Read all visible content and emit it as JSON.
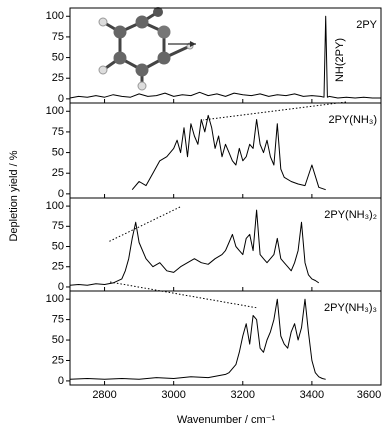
{
  "chart_data": [
    {
      "type": "line",
      "label": "2PY",
      "annotation": "NH(2PY)",
      "y_label": "Depletion yield / %",
      "color": "#000000",
      "ylim": [
        -5,
        110
      ],
      "yticks": [
        0,
        25,
        50,
        75,
        100
      ],
      "xlim": [
        2700,
        3600
      ],
      "x": [
        2700,
        2725,
        2750,
        2775,
        2800,
        2825,
        2850,
        2875,
        2900,
        2925,
        2950,
        2975,
        3000,
        3025,
        3050,
        3075,
        3100,
        3125,
        3150,
        3175,
        3200,
        3225,
        3250,
        3275,
        3300,
        3325,
        3350,
        3375,
        3400,
        3425,
        3435,
        3440,
        3445,
        3450,
        3475,
        3500,
        3525,
        3550,
        3575,
        3600
      ],
      "values": [
        1,
        3,
        2,
        4,
        2,
        5,
        3,
        2,
        6,
        3,
        4,
        7,
        3,
        5,
        4,
        8,
        4,
        6,
        3,
        7,
        5,
        4,
        6,
        3,
        5,
        4,
        6,
        3,
        4,
        3,
        2,
        100,
        2,
        3,
        1,
        2,
        1,
        2,
        1,
        1
      ]
    },
    {
      "type": "line",
      "label": "2PY(NH₃)",
      "color": "#000000",
      "ylim": [
        -5,
        110
      ],
      "yticks": [
        0,
        25,
        50,
        75,
        100
      ],
      "xlim": [
        2700,
        3600
      ],
      "x": [
        2880,
        2900,
        2920,
        2940,
        2960,
        2980,
        3000,
        3010,
        3020,
        3030,
        3040,
        3050,
        3060,
        3070,
        3080,
        3090,
        3100,
        3110,
        3120,
        3130,
        3140,
        3150,
        3160,
        3170,
        3180,
        3190,
        3200,
        3210,
        3220,
        3230,
        3240,
        3250,
        3260,
        3270,
        3280,
        3290,
        3300,
        3310,
        3320,
        3340,
        3360,
        3380,
        3400,
        3420,
        3440
      ],
      "values": [
        5,
        15,
        10,
        25,
        40,
        45,
        55,
        65,
        50,
        80,
        45,
        85,
        70,
        60,
        90,
        75,
        95,
        80,
        55,
        70,
        45,
        60,
        50,
        40,
        35,
        55,
        40,
        45,
        60,
        55,
        90,
        60,
        50,
        65,
        45,
        35,
        85,
        30,
        20,
        15,
        12,
        10,
        35,
        8,
        5
      ]
    },
    {
      "type": "line",
      "label": "2PY(NH₃)₂",
      "color": "#000000",
      "ylim": [
        -5,
        110
      ],
      "yticks": [
        0,
        25,
        50,
        75,
        100
      ],
      "xlim": [
        2700,
        3600
      ],
      "x": [
        2700,
        2725,
        2750,
        2775,
        2800,
        2825,
        2850,
        2860,
        2870,
        2880,
        2890,
        2900,
        2920,
        2940,
        2960,
        2980,
        3000,
        3020,
        3040,
        3060,
        3080,
        3100,
        3120,
        3140,
        3150,
        3160,
        3170,
        3180,
        3190,
        3200,
        3210,
        3220,
        3230,
        3240,
        3250,
        3260,
        3270,
        3280,
        3290,
        3300,
        3310,
        3320,
        3330,
        3340,
        3350,
        3360,
        3370,
        3380,
        3390,
        3400,
        3410,
        3420
      ],
      "values": [
        2,
        3,
        2,
        4,
        3,
        5,
        10,
        20,
        35,
        60,
        80,
        55,
        35,
        25,
        30,
        20,
        18,
        25,
        30,
        35,
        30,
        28,
        35,
        40,
        45,
        55,
        65,
        50,
        45,
        40,
        60,
        65,
        45,
        95,
        40,
        35,
        30,
        35,
        40,
        60,
        35,
        30,
        25,
        20,
        30,
        45,
        80,
        30,
        15,
        10,
        8,
        5
      ]
    },
    {
      "type": "line",
      "label": "2PY(NH₃)₃",
      "color": "#000000",
      "x_label": "Wavenumber / cm⁻¹",
      "ylim": [
        -5,
        110
      ],
      "yticks": [
        0,
        25,
        50,
        75,
        100
      ],
      "xlim": [
        2700,
        3600
      ],
      "xticks": [
        2800,
        3000,
        3200,
        3400,
        3600
      ],
      "x": [
        2700,
        2750,
        2800,
        2850,
        2900,
        2950,
        3000,
        3050,
        3100,
        3150,
        3160,
        3170,
        3180,
        3190,
        3200,
        3210,
        3220,
        3230,
        3240,
        3250,
        3260,
        3270,
        3280,
        3290,
        3300,
        3310,
        3320,
        3330,
        3340,
        3350,
        3360,
        3370,
        3380,
        3390,
        3400,
        3410,
        3420,
        3430,
        3440
      ],
      "values": [
        2,
        3,
        2,
        3,
        2,
        4,
        3,
        5,
        4,
        8,
        10,
        15,
        20,
        35,
        55,
        70,
        45,
        80,
        75,
        40,
        35,
        50,
        60,
        75,
        100,
        55,
        45,
        40,
        60,
        70,
        50,
        65,
        100,
        60,
        25,
        10,
        5,
        3,
        2
      ]
    }
  ]
}
